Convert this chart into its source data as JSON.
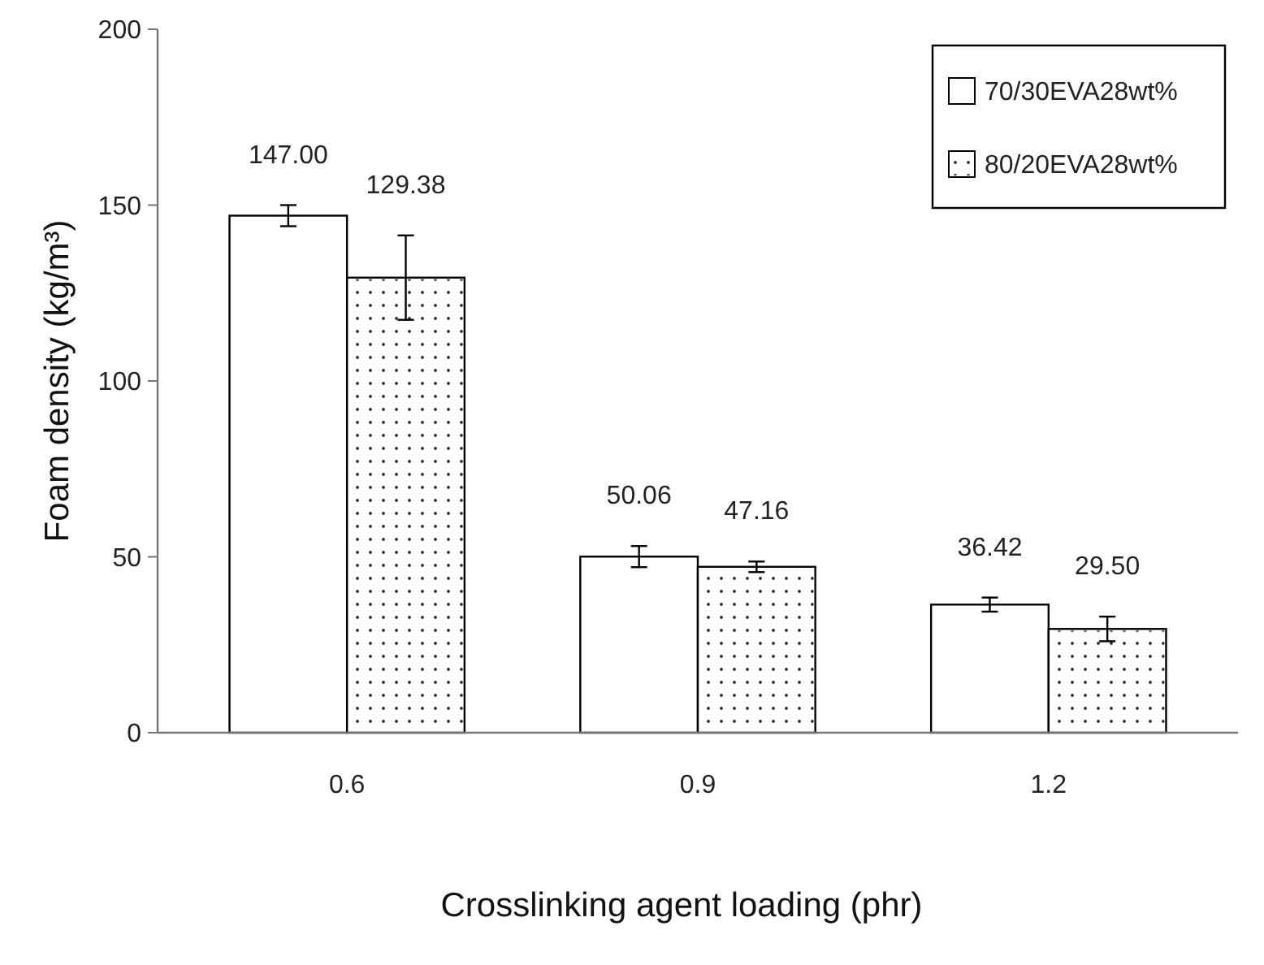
{
  "chart_data": {
    "type": "bar",
    "xlabel": "Crosslinking agent loading (phr)",
    "ylabel": "Foam density (kg/m³)",
    "categories": [
      "0.6",
      "0.9",
      "1.2"
    ],
    "series": [
      {
        "name": "70/30EVA28wt%",
        "color": "#ffffff",
        "values": [
          147.0,
          50.06,
          36.42
        ],
        "errors": [
          3,
          3,
          2
        ],
        "value_labels": [
          "147.00",
          "50.06",
          "36.42"
        ]
      },
      {
        "name": "80/20EVA28wt%",
        "color": "#ffffff",
        "values": [
          129.38,
          47.16,
          29.5
        ],
        "errors": [
          12,
          1.5,
          3.5
        ],
        "value_labels": [
          "129.38",
          "47.16",
          "29.50"
        ]
      }
    ],
    "ylim": [
      0,
      200
    ],
    "yticks": [
      0,
      50,
      100,
      150,
      200
    ],
    "legend": "top right",
    "grid": false
  }
}
